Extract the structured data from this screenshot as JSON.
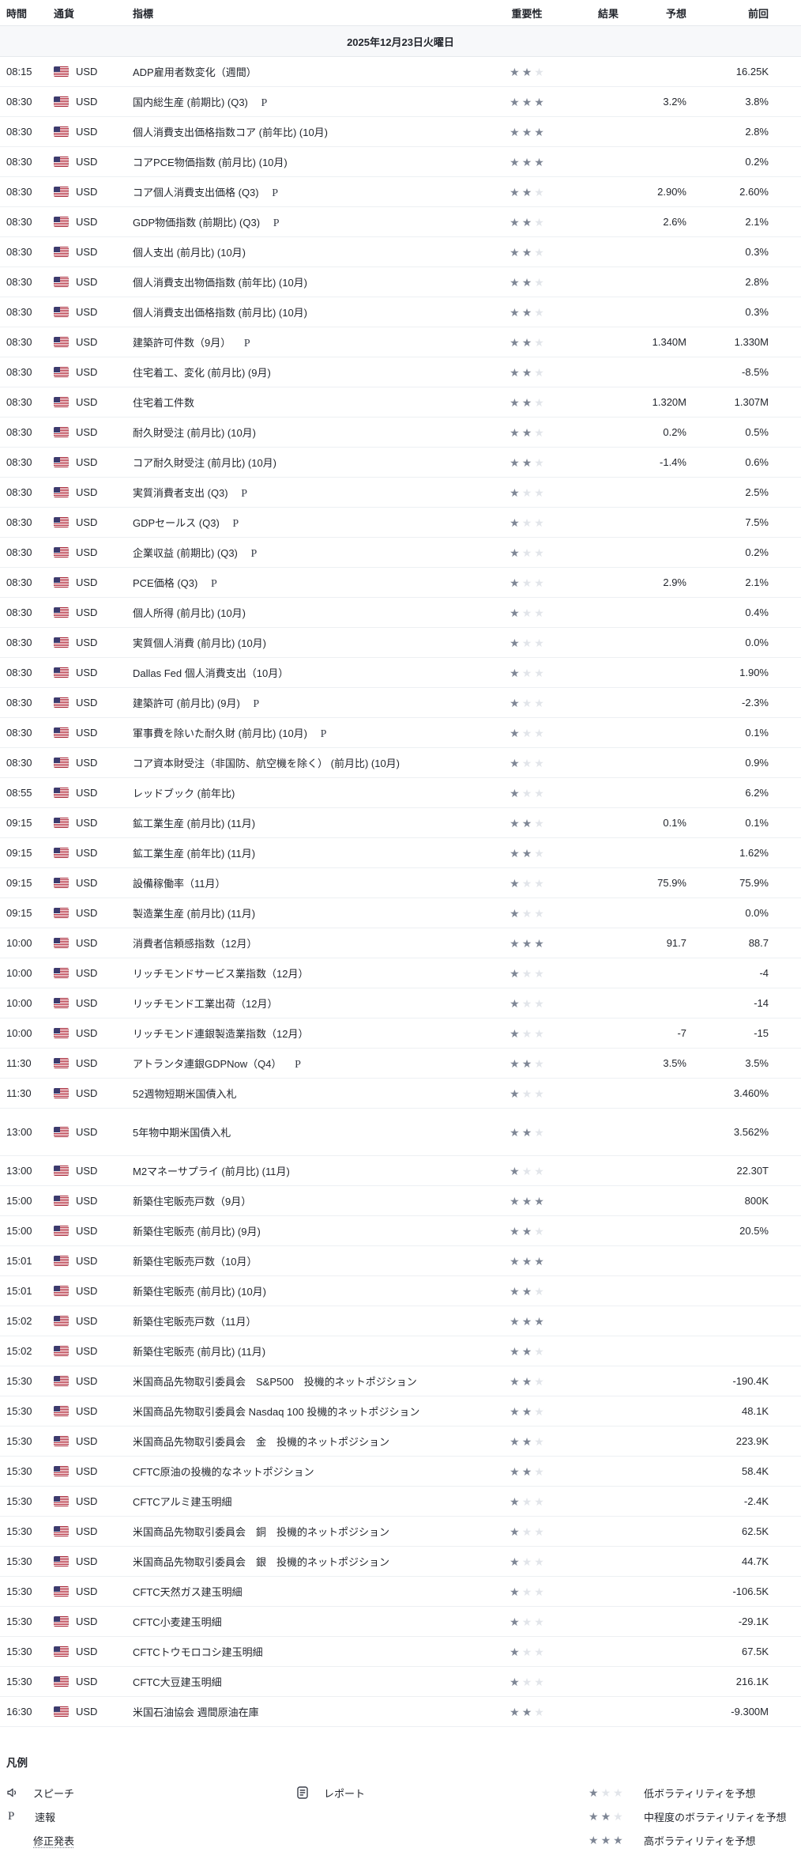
{
  "header": {
    "columns": [
      "時間",
      "通貨",
      "指標",
      "重要性",
      "結果",
      "予想",
      "前回"
    ]
  },
  "date_header": "2025年12月23日火曜日",
  "icons": {
    "star_glyph": "★",
    "flag": "us-flag"
  },
  "colors": {
    "text": "#23262d",
    "muted_border": "#edf0f3",
    "header_border": "#e6e9ed",
    "date_row_bg": "#f7f8fa",
    "star_filled": "#7e8695",
    "star_empty": "#e2e5ea",
    "flag_red": "#b22234",
    "flag_white": "#ffffff",
    "flag_blue": "#3c3b6e"
  },
  "events": [
    {
      "time": "08:15",
      "currency": "USD",
      "name": "ADP雇用者数変化（週間）",
      "p": false,
      "stars": 2,
      "result": "",
      "forecast": "",
      "previous": "16.25K"
    },
    {
      "time": "08:30",
      "currency": "USD",
      "name": "国内総生産 (前期比) (Q3)",
      "p": true,
      "stars": 3,
      "result": "",
      "forecast": "3.2%",
      "previous": "3.8%"
    },
    {
      "time": "08:30",
      "currency": "USD",
      "name": "個人消費支出価格指数コア (前年比) (10月)",
      "p": false,
      "stars": 3,
      "result": "",
      "forecast": "",
      "previous": "2.8%"
    },
    {
      "time": "08:30",
      "currency": "USD",
      "name": "コアPCE物価指数 (前月比) (10月)",
      "p": false,
      "stars": 3,
      "result": "",
      "forecast": "",
      "previous": "0.2%"
    },
    {
      "time": "08:30",
      "currency": "USD",
      "name": "コア個人消費支出価格 (Q3)",
      "p": true,
      "stars": 2,
      "result": "",
      "forecast": "2.90%",
      "previous": "2.60%"
    },
    {
      "time": "08:30",
      "currency": "USD",
      "name": "GDP物価指数 (前期比) (Q3)",
      "p": true,
      "stars": 2,
      "result": "",
      "forecast": "2.6%",
      "previous": "2.1%"
    },
    {
      "time": "08:30",
      "currency": "USD",
      "name": "個人支出 (前月比) (10月)",
      "p": false,
      "stars": 2,
      "result": "",
      "forecast": "",
      "previous": "0.3%"
    },
    {
      "time": "08:30",
      "currency": "USD",
      "name": "個人消費支出物価指数 (前年比) (10月)",
      "p": false,
      "stars": 2,
      "result": "",
      "forecast": "",
      "previous": "2.8%"
    },
    {
      "time": "08:30",
      "currency": "USD",
      "name": "個人消費支出価格指数 (前月比) (10月)",
      "p": false,
      "stars": 2,
      "result": "",
      "forecast": "",
      "previous": "0.3%"
    },
    {
      "time": "08:30",
      "currency": "USD",
      "name": "建築許可件数（9月）",
      "p": true,
      "stars": 2,
      "result": "",
      "forecast": "1.340M",
      "previous": "1.330M"
    },
    {
      "time": "08:30",
      "currency": "USD",
      "name": "住宅着工、変化 (前月比) (9月)",
      "p": false,
      "stars": 2,
      "result": "",
      "forecast": "",
      "previous": "-8.5%"
    },
    {
      "time": "08:30",
      "currency": "USD",
      "name": "住宅着工件数",
      "p": false,
      "stars": 2,
      "result": "",
      "forecast": "1.320M",
      "previous": "1.307M"
    },
    {
      "time": "08:30",
      "currency": "USD",
      "name": "耐久財受注 (前月比) (10月)",
      "p": false,
      "stars": 2,
      "result": "",
      "forecast": "0.2%",
      "previous": "0.5%"
    },
    {
      "time": "08:30",
      "currency": "USD",
      "name": "コア耐久財受注 (前月比) (10月)",
      "p": false,
      "stars": 2,
      "result": "",
      "forecast": "-1.4%",
      "previous": "0.6%"
    },
    {
      "time": "08:30",
      "currency": "USD",
      "name": "実質消費者支出 (Q3)",
      "p": true,
      "stars": 1,
      "result": "",
      "forecast": "",
      "previous": "2.5%"
    },
    {
      "time": "08:30",
      "currency": "USD",
      "name": "GDPセールス (Q3)",
      "p": true,
      "stars": 1,
      "result": "",
      "forecast": "",
      "previous": "7.5%"
    },
    {
      "time": "08:30",
      "currency": "USD",
      "name": "企業収益 (前期比) (Q3)",
      "p": true,
      "stars": 1,
      "result": "",
      "forecast": "",
      "previous": "0.2%"
    },
    {
      "time": "08:30",
      "currency": "USD",
      "name": "PCE価格 (Q3)",
      "p": true,
      "stars": 1,
      "result": "",
      "forecast": "2.9%",
      "previous": "2.1%"
    },
    {
      "time": "08:30",
      "currency": "USD",
      "name": "個人所得 (前月比) (10月)",
      "p": false,
      "stars": 1,
      "result": "",
      "forecast": "",
      "previous": "0.4%"
    },
    {
      "time": "08:30",
      "currency": "USD",
      "name": "実質個人消費 (前月比) (10月)",
      "p": false,
      "stars": 1,
      "result": "",
      "forecast": "",
      "previous": "0.0%"
    },
    {
      "time": "08:30",
      "currency": "USD",
      "name": "Dallas Fed 個人消費支出（10月）",
      "p": false,
      "stars": 1,
      "result": "",
      "forecast": "",
      "previous": "1.90%"
    },
    {
      "time": "08:30",
      "currency": "USD",
      "name": "建築許可 (前月比) (9月)",
      "p": true,
      "stars": 1,
      "result": "",
      "forecast": "",
      "previous": "-2.3%"
    },
    {
      "time": "08:30",
      "currency": "USD",
      "name": "軍事費を除いた耐久財 (前月比) (10月)",
      "p": true,
      "stars": 1,
      "result": "",
      "forecast": "",
      "previous": "0.1%"
    },
    {
      "time": "08:30",
      "currency": "USD",
      "name": "コア資本財受注（非国防、航空機を除く） (前月比) (10月)",
      "p": false,
      "stars": 1,
      "result": "",
      "forecast": "",
      "previous": "0.9%"
    },
    {
      "time": "08:55",
      "currency": "USD",
      "name": "レッドブック (前年比)",
      "p": false,
      "stars": 1,
      "result": "",
      "forecast": "",
      "previous": "6.2%"
    },
    {
      "time": "09:15",
      "currency": "USD",
      "name": "鉱工業生産 (前月比) (11月)",
      "p": false,
      "stars": 2,
      "result": "",
      "forecast": "0.1%",
      "previous": "0.1%"
    },
    {
      "time": "09:15",
      "currency": "USD",
      "name": "鉱工業生産 (前年比) (11月)",
      "p": false,
      "stars": 2,
      "result": "",
      "forecast": "",
      "previous": "1.62%"
    },
    {
      "time": "09:15",
      "currency": "USD",
      "name": "設備稼働率（11月）",
      "p": false,
      "stars": 1,
      "result": "",
      "forecast": "75.9%",
      "previous": "75.9%"
    },
    {
      "time": "09:15",
      "currency": "USD",
      "name": "製造業生産 (前月比) (11月)",
      "p": false,
      "stars": 1,
      "result": "",
      "forecast": "",
      "previous": "0.0%"
    },
    {
      "time": "10:00",
      "currency": "USD",
      "name": "消費者信頼感指数（12月）",
      "p": false,
      "stars": 3,
      "result": "",
      "forecast": "91.7",
      "previous": "88.7"
    },
    {
      "time": "10:00",
      "currency": "USD",
      "name": "リッチモンドサービス業指数（12月）",
      "p": false,
      "stars": 1,
      "result": "",
      "forecast": "",
      "previous": "-4"
    },
    {
      "time": "10:00",
      "currency": "USD",
      "name": "リッチモンド工業出荷（12月）",
      "p": false,
      "stars": 1,
      "result": "",
      "forecast": "",
      "previous": "-14"
    },
    {
      "time": "10:00",
      "currency": "USD",
      "name": "リッチモンド連銀製造業指数（12月）",
      "p": false,
      "stars": 1,
      "result": "",
      "forecast": "-7",
      "previous": "-15"
    },
    {
      "time": "11:30",
      "currency": "USD",
      "name": "アトランタ連銀GDPNow（Q4）",
      "p": true,
      "stars": 2,
      "result": "",
      "forecast": "3.5%",
      "previous": "3.5%"
    },
    {
      "time": "11:30",
      "currency": "USD",
      "name": "52週物短期米国債入札",
      "p": false,
      "stars": 1,
      "result": "",
      "forecast": "",
      "previous": "3.460%"
    },
    {
      "time": "13:00",
      "currency": "USD",
      "name": "5年物中期米国債入札",
      "p": false,
      "stars": 2,
      "result": "",
      "forecast": "",
      "previous": "3.562%",
      "tall": true
    },
    {
      "time": "13:00",
      "currency": "USD",
      "name": "M2マネーサプライ (前月比) (11月)",
      "p": false,
      "stars": 1,
      "result": "",
      "forecast": "",
      "previous": "22.30T"
    },
    {
      "time": "15:00",
      "currency": "USD",
      "name": "新築住宅販売戸数（9月）",
      "p": false,
      "stars": 3,
      "result": "",
      "forecast": "",
      "previous": "800K"
    },
    {
      "time": "15:00",
      "currency": "USD",
      "name": "新築住宅販売 (前月比) (9月)",
      "p": false,
      "stars": 2,
      "result": "",
      "forecast": "",
      "previous": "20.5%"
    },
    {
      "time": "15:01",
      "currency": "USD",
      "name": "新築住宅販売戸数（10月）",
      "p": false,
      "stars": 3,
      "result": "",
      "forecast": "",
      "previous": ""
    },
    {
      "time": "15:01",
      "currency": "USD",
      "name": "新築住宅販売 (前月比) (10月)",
      "p": false,
      "stars": 2,
      "result": "",
      "forecast": "",
      "previous": ""
    },
    {
      "time": "15:02",
      "currency": "USD",
      "name": "新築住宅販売戸数（11月）",
      "p": false,
      "stars": 3,
      "result": "",
      "forecast": "",
      "previous": ""
    },
    {
      "time": "15:02",
      "currency": "USD",
      "name": "新築住宅販売 (前月比) (11月)",
      "p": false,
      "stars": 2,
      "result": "",
      "forecast": "",
      "previous": ""
    },
    {
      "time": "15:30",
      "currency": "USD",
      "name": "米国商品先物取引委員会　S&P500　投機的ネットポジション",
      "p": false,
      "stars": 2,
      "result": "",
      "forecast": "",
      "previous": "-190.4K"
    },
    {
      "time": "15:30",
      "currency": "USD",
      "name": "米国商品先物取引委員会 Nasdaq 100 投機的ネットポジション",
      "p": false,
      "stars": 2,
      "result": "",
      "forecast": "",
      "previous": "48.1K"
    },
    {
      "time": "15:30",
      "currency": "USD",
      "name": "米国商品先物取引委員会　金　投機的ネットポジション",
      "p": false,
      "stars": 2,
      "result": "",
      "forecast": "",
      "previous": "223.9K"
    },
    {
      "time": "15:30",
      "currency": "USD",
      "name": "CFTC原油の投機的なネットポジション",
      "p": false,
      "stars": 2,
      "result": "",
      "forecast": "",
      "previous": "58.4K"
    },
    {
      "time": "15:30",
      "currency": "USD",
      "name": "CFTCアルミ建玉明細",
      "p": false,
      "stars": 1,
      "result": "",
      "forecast": "",
      "previous": "-2.4K"
    },
    {
      "time": "15:30",
      "currency": "USD",
      "name": "米国商品先物取引委員会　銅　投機的ネットポジション",
      "p": false,
      "stars": 1,
      "result": "",
      "forecast": "",
      "previous": "62.5K"
    },
    {
      "time": "15:30",
      "currency": "USD",
      "name": "米国商品先物取引委員会　銀　投機的ネットポジション",
      "p": false,
      "stars": 1,
      "result": "",
      "forecast": "",
      "previous": "44.7K"
    },
    {
      "time": "15:30",
      "currency": "USD",
      "name": "CFTC天然ガス建玉明細",
      "p": false,
      "stars": 1,
      "result": "",
      "forecast": "",
      "previous": "-106.5K"
    },
    {
      "time": "15:30",
      "currency": "USD",
      "name": "CFTC小麦建玉明細",
      "p": false,
      "stars": 1,
      "result": "",
      "forecast": "",
      "previous": "-29.1K"
    },
    {
      "time": "15:30",
      "currency": "USD",
      "name": "CFTCトウモロコシ建玉明細",
      "p": false,
      "stars": 1,
      "result": "",
      "forecast": "",
      "previous": "67.5K"
    },
    {
      "time": "15:30",
      "currency": "USD",
      "name": "CFTC大豆建玉明細",
      "p": false,
      "stars": 1,
      "result": "",
      "forecast": "",
      "previous": "216.1K"
    },
    {
      "time": "16:30",
      "currency": "USD",
      "name": "米国石油協会 週間原油在庫",
      "p": false,
      "stars": 2,
      "result": "",
      "forecast": "",
      "previous": "-9.300M"
    }
  ],
  "legend": {
    "title": "凡例",
    "speech_label": "スピーチ",
    "report_label": "レポート",
    "preliminary_marker": "P",
    "preliminary_label": "速報",
    "revised_label": "修正発表",
    "low": {
      "stars": 1,
      "label": "低ボラティリティを予想"
    },
    "medium": {
      "stars": 2,
      "label": "中程度のボラティリティを予想"
    },
    "high": {
      "stars": 3,
      "label": "高ボラティリティを予想"
    }
  }
}
